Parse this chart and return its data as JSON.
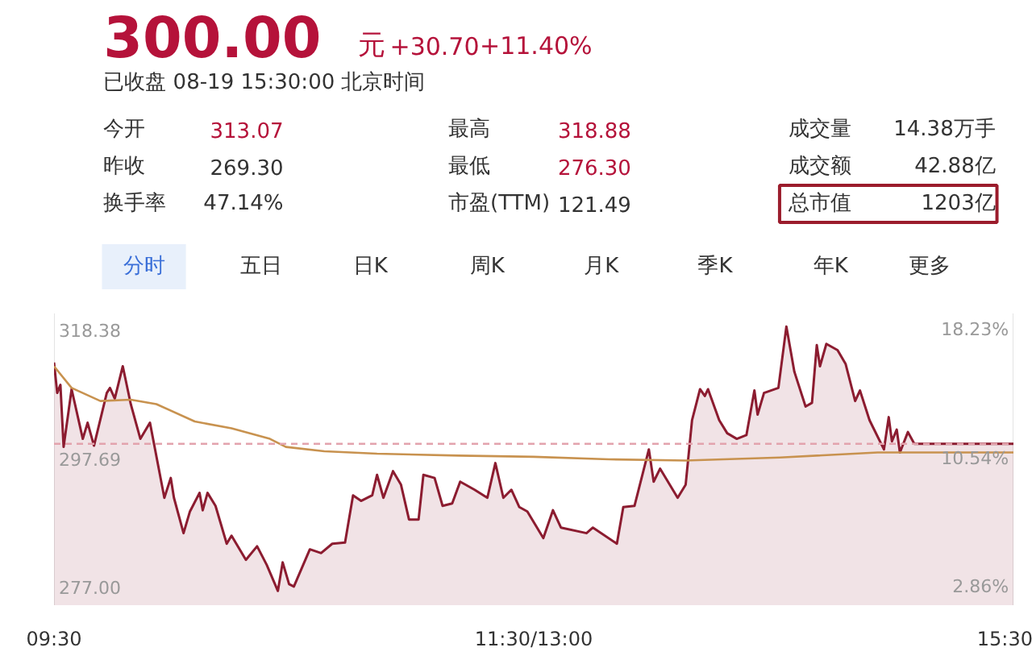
{
  "chart_data": {
    "type": "line",
    "title": "300.00",
    "subtitle": "已收盘 08-19 15:30:00 北京时间",
    "annotations": [
      "元",
      "+30.70",
      "+11.40%",
      "今开",
      "313.07",
      "昨收",
      "269.30",
      "换手率",
      "47.14%",
      "最高",
      "318.88",
      "最低",
      "276.30",
      "市盈(TTM)",
      "121.49",
      "成交量",
      "14.38万手",
      "成交额",
      "42.88亿",
      "总市值",
      "1203亿",
      "分时",
      "五日",
      "日K",
      "周K",
      "月K",
      "季K",
      "年K",
      "更多"
    ],
    "xlim": [
      9.5,
      15.5
    ],
    "xticks": [
      {
        "value": 9.5,
        "label": "09:30"
      },
      {
        "value": 12.5,
        "label": "11:30/13:00"
      },
      {
        "value": 15.5,
        "label": "15:30"
      }
    ],
    "ylim": [
      274,
      321
    ],
    "yticks": [
      {
        "value": 277,
        "label": "277.00"
      },
      297.69,
      318.38
    ],
    "y2lim": [
      1.75,
      19.2
    ],
    "y2ticks": [
      {
        "value": 2.86,
        "label": "2.86%"
      },
      {
        "value": 10.54,
        "label": "10.54%"
      },
      {
        "value": 18.23,
        "label": "18.23%"
      }
    ],
    "grid": false,
    "ref_lines": [
      {
        "axis": "y",
        "value": 300.0,
        "color": "#e3a3ad",
        "line_style": "dashed"
      }
    ],
    "series": [
      {
        "type": "area",
        "color": "#8c1c30",
        "x": [
          9.5,
          9.52,
          9.54,
          9.56,
          9.61,
          9.68,
          9.71,
          9.75,
          9.83,
          9.85,
          9.88,
          9.93,
          9.98,
          10.04,
          10.1,
          10.19,
          10.23,
          10.25,
          10.31,
          10.35,
          10.41,
          10.43,
          10.46,
          10.51,
          10.58,
          10.61,
          10.7,
          10.77,
          10.83,
          10.9,
          10.93,
          10.97,
          11.0,
          11.1,
          11.17,
          11.24,
          11.32,
          11.37,
          11.42,
          11.49,
          11.52,
          11.56,
          11.62,
          11.67,
          11.72,
          11.78,
          11.81,
          11.88,
          11.93,
          11.99,
          12.04,
          12.13,
          12.21,
          12.26,
          12.31,
          12.36,
          12.41,
          12.46,
          12.56,
          12.62,
          12.67,
          12.83,
          12.87,
          13.02,
          13.06,
          13.13,
          13.22,
          13.25,
          13.29,
          13.4,
          13.45,
          13.49,
          13.54,
          13.57,
          13.59,
          13.66,
          13.71,
          13.77,
          13.83,
          13.88,
          13.9,
          13.94,
          14.03,
          14.08,
          14.13,
          14.2,
          14.24,
          14.27,
          14.29,
          14.33,
          14.4,
          14.45,
          14.51,
          14.54,
          14.6,
          14.69,
          14.72,
          14.74,
          14.77,
          14.79,
          14.84,
          14.88,
          15.5
        ],
        "values": [
          313.1,
          308.2,
          309.5,
          299.5,
          308.8,
          300.8,
          303.4,
          299.7,
          308.2,
          309.0,
          307.3,
          312.5,
          306.4,
          300.8,
          303.4,
          291.3,
          294.5,
          291.3,
          285.6,
          289.1,
          292.1,
          289.3,
          292.1,
          290.0,
          283.9,
          285.2,
          281.3,
          283.5,
          280.5,
          276.3,
          280.9,
          277.4,
          277.0,
          283.0,
          282.4,
          283.9,
          284.1,
          291.7,
          290.8,
          291.7,
          295.0,
          291.3,
          295.6,
          293.4,
          287.8,
          287.8,
          295.0,
          294.5,
          290.0,
          290.4,
          293.9,
          292.6,
          291.3,
          296.9,
          291.3,
          292.6,
          289.8,
          289.1,
          284.8,
          289.3,
          286.5,
          285.6,
          286.5,
          283.9,
          289.8,
          290.0,
          299.1,
          293.9,
          296.0,
          291.3,
          293.4,
          303.8,
          308.8,
          307.7,
          308.8,
          303.8,
          301.7,
          300.8,
          301.4,
          308.6,
          304.7,
          308.2,
          309.0,
          318.9,
          311.6,
          306.0,
          306.6,
          315.9,
          312.5,
          316.1,
          315.1,
          312.9,
          306.9,
          308.6,
          303.8,
          299.1,
          304.3,
          300.4,
          302.3,
          298.6,
          301.9,
          300.0,
          300.0
        ]
      },
      {
        "color": "#c8924f",
        "x": [
          9.5,
          9.61,
          9.79,
          9.98,
          10.14,
          10.38,
          10.61,
          10.85,
          10.95,
          11.19,
          11.52,
          12.03,
          12.5,
          12.97,
          13.45,
          14.04,
          14.65,
          15.5
        ],
        "values": [
          312.5,
          309.0,
          306.9,
          307.1,
          306.4,
          303.6,
          302.5,
          300.8,
          299.5,
          298.8,
          298.4,
          298.1,
          297.9,
          297.5,
          297.3,
          297.8,
          298.6,
          298.6
        ]
      }
    ]
  }
}
